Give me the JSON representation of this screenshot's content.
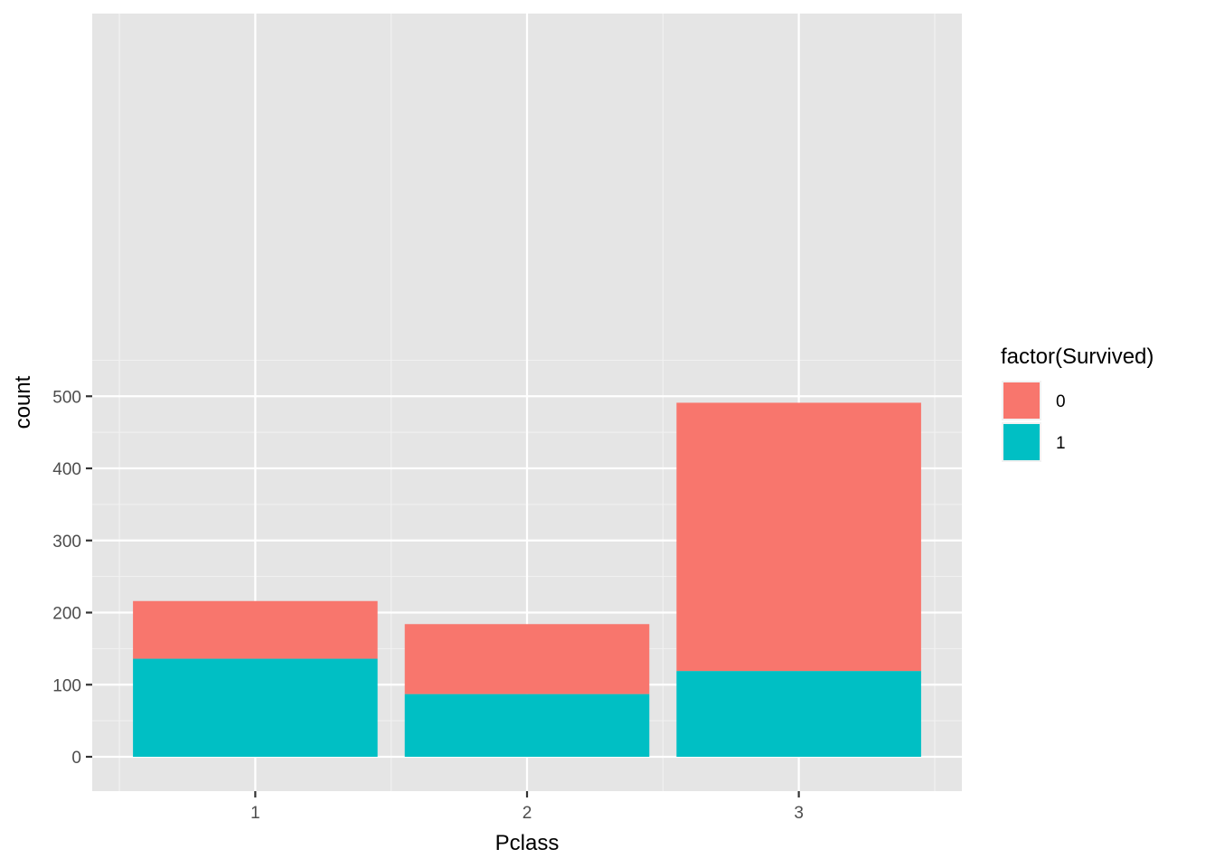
{
  "chart_data": {
    "type": "bar",
    "stacked": true,
    "title": "",
    "xlabel": "Pclass",
    "ylabel": "count",
    "categories": [
      "1",
      "2",
      "3"
    ],
    "series": [
      {
        "name": "0",
        "color": "#F8766D",
        "values": [
          80,
          97,
          372
        ]
      },
      {
        "name": "1",
        "color": "#00BFC4",
        "values": [
          136,
          87,
          119
        ]
      }
    ],
    "ylim": [
      0,
      520
    ],
    "yticks": [
      0,
      100,
      200,
      300,
      400,
      500
    ],
    "grid": true,
    "legend": {
      "title": "factor(Survived)",
      "position": "right",
      "order": [
        "0",
        "1"
      ]
    },
    "panel_background": "#EBEBEB"
  }
}
